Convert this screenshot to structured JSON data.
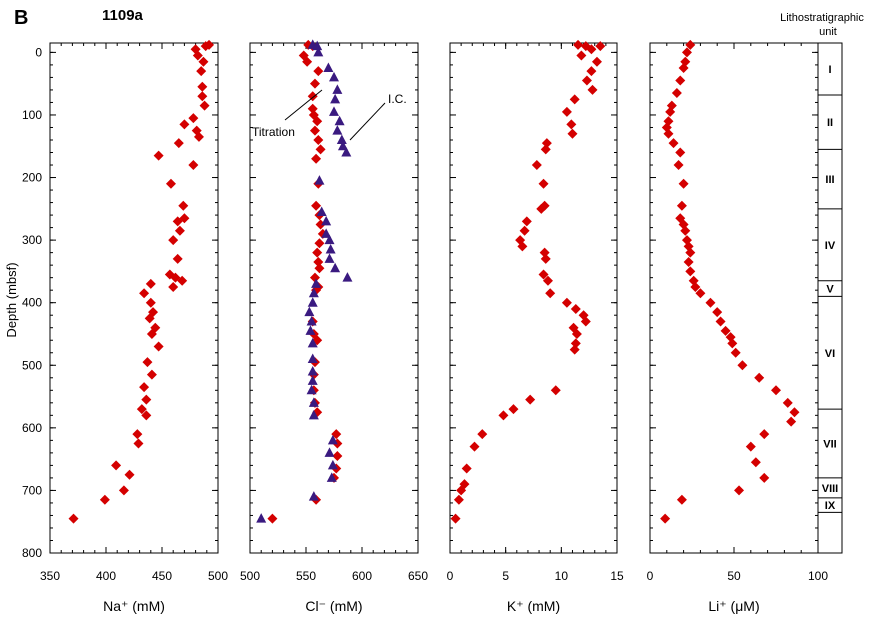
{
  "figure": {
    "panel_letter": "B",
    "hole_label": "1109a",
    "y_axis_label": "Depth (mbsf)",
    "litho_header_line1": "Lithostratigraphic",
    "litho_header_line2": "unit",
    "colors": {
      "marker_red": "#d40000",
      "marker_blue": "#3a1a80",
      "axis": "#000000"
    }
  },
  "chart_data": [
    {
      "type": "scatter",
      "series": [
        {
          "name": "",
          "marker": "diamond",
          "color": "#d40000",
          "points": [
            [
              492,
              -12
            ],
            [
              489,
              -10
            ],
            [
              480,
              -5
            ],
            [
              482,
              5
            ],
            [
              487,
              15
            ],
            [
              485,
              30
            ],
            [
              486,
              55
            ],
            [
              486,
              70
            ],
            [
              488,
              85
            ],
            [
              478,
              105
            ],
            [
              481,
              125
            ],
            [
              483,
              135
            ],
            [
              465,
              145
            ],
            [
              470,
              115
            ],
            [
              447,
              165
            ],
            [
              478,
              180
            ],
            [
              458,
              210
            ],
            [
              469,
              245
            ],
            [
              464,
              270
            ],
            [
              470,
              265
            ],
            [
              466,
              285
            ],
            [
              460,
              300
            ],
            [
              464,
              330
            ],
            [
              457,
              355
            ],
            [
              462,
              360
            ],
            [
              468,
              365
            ],
            [
              460,
              375
            ],
            [
              440,
              370
            ],
            [
              434,
              385
            ],
            [
              440,
              400
            ],
            [
              442,
              415
            ],
            [
              439,
              425
            ],
            [
              444,
              440
            ],
            [
              441,
              450
            ],
            [
              447,
              470
            ],
            [
              437,
              495
            ],
            [
              441,
              515
            ],
            [
              434,
              535
            ],
            [
              436,
              555
            ],
            [
              432,
              570
            ],
            [
              436,
              580
            ],
            [
              428,
              610
            ],
            [
              429,
              625
            ],
            [
              409,
              660
            ],
            [
              421,
              675
            ],
            [
              416,
              700
            ],
            [
              399,
              715
            ],
            [
              371,
              745
            ]
          ]
        }
      ],
      "xlabel": "Na⁺ (mM)",
      "xlim": [
        350,
        500
      ],
      "x_ticks": [
        "350",
        "400",
        "450",
        "500"
      ],
      "ylim": [
        800,
        -15
      ],
      "y_ticks": [
        "0",
        "100",
        "200",
        "300",
        "400",
        "500",
        "600",
        "700",
        "800"
      ]
    },
    {
      "type": "scatter",
      "series": [
        {
          "name": "",
          "marker": "diamond",
          "color": "#d40000",
          "points": [
            [
              552,
              -12
            ],
            [
              556,
              -10
            ],
            [
              548,
              5
            ],
            [
              551,
              15
            ],
            [
              561,
              30
            ],
            [
              558,
              50
            ],
            [
              556,
              70
            ],
            [
              556,
              90
            ],
            [
              557,
              100
            ],
            [
              560,
              110
            ],
            [
              558,
              125
            ],
            [
              561,
              140
            ],
            [
              563,
              155
            ],
            [
              559,
              170
            ],
            [
              561,
              210
            ],
            [
              559,
              245
            ],
            [
              562,
              260
            ],
            [
              563,
              275
            ],
            [
              565,
              290
            ],
            [
              562,
              305
            ],
            [
              560,
              320
            ],
            [
              561,
              335
            ],
            [
              562,
              345
            ],
            [
              558,
              360
            ],
            [
              561,
              375
            ],
            [
              559,
              380
            ],
            [
              556,
              430
            ],
            [
              557,
              450
            ],
            [
              560,
              460
            ],
            [
              558,
              495
            ],
            [
              557,
              515
            ],
            [
              557,
              540
            ],
            [
              558,
              560
            ],
            [
              560,
              575
            ],
            [
              577,
              610
            ],
            [
              578,
              625
            ],
            [
              578,
              645
            ],
            [
              577,
              665
            ],
            [
              575,
              680
            ],
            [
              559,
              715
            ],
            [
              520,
              745
            ]
          ]
        },
        {
          "name": "",
          "marker": "triangle",
          "color": "#3a1a80",
          "points": [
            [
              556,
              -12
            ],
            [
              560,
              -10
            ],
            [
              561,
              0
            ],
            [
              570,
              25
            ],
            [
              575,
              40
            ],
            [
              578,
              60
            ],
            [
              576,
              75
            ],
            [
              575,
              95
            ],
            [
              580,
              110
            ],
            [
              578,
              125
            ],
            [
              582,
              140
            ],
            [
              583,
              150
            ],
            [
              586,
              160
            ],
            [
              562,
              205
            ],
            [
              564,
              255
            ],
            [
              568,
              270
            ],
            [
              568,
              290
            ],
            [
              571,
              300
            ],
            [
              572,
              315
            ],
            [
              571,
              330
            ],
            [
              576,
              345
            ],
            [
              587,
              360
            ],
            [
              559,
              370
            ],
            [
              557,
              385
            ],
            [
              556,
              400
            ],
            [
              553,
              415
            ],
            [
              555,
              430
            ],
            [
              554,
              445
            ],
            [
              556,
              465
            ],
            [
              556,
              490
            ],
            [
              556,
              510
            ],
            [
              556,
              525
            ],
            [
              555,
              540
            ],
            [
              557,
              560
            ],
            [
              557,
              580
            ],
            [
              574,
              620
            ],
            [
              571,
              640
            ],
            [
              574,
              660
            ],
            [
              573,
              680
            ],
            [
              557,
              710
            ],
            [
              510,
              745
            ]
          ]
        }
      ],
      "xlabel": "Cl⁻ (mM)",
      "xlim": [
        500,
        650
      ],
      "x_ticks": [
        "500",
        "550",
        "600",
        "650"
      ],
      "annotations": [
        "Titration",
        "I.C."
      ]
    },
    {
      "type": "scatter",
      "series": [
        {
          "name": "",
          "marker": "diamond",
          "color": "#d40000",
          "points": [
            [
              11.5,
              -12
            ],
            [
              12.2,
              -10
            ],
            [
              12.7,
              -5
            ],
            [
              13.5,
              -10
            ],
            [
              11.8,
              5
            ],
            [
              13.2,
              15
            ],
            [
              12.7,
              30
            ],
            [
              12.3,
              45
            ],
            [
              12.8,
              60
            ],
            [
              11.2,
              75
            ],
            [
              10.5,
              95
            ],
            [
              10.9,
              115
            ],
            [
              11.0,
              130
            ],
            [
              8.7,
              145
            ],
            [
              8.6,
              155
            ],
            [
              7.8,
              180
            ],
            [
              8.4,
              210
            ],
            [
              8.2,
              250
            ],
            [
              8.5,
              245
            ],
            [
              6.9,
              270
            ],
            [
              6.7,
              285
            ],
            [
              6.3,
              300
            ],
            [
              6.5,
              310
            ],
            [
              8.5,
              320
            ],
            [
              8.6,
              330
            ],
            [
              8.4,
              355
            ],
            [
              8.8,
              365
            ],
            [
              9.0,
              385
            ],
            [
              10.5,
              400
            ],
            [
              11.3,
              410
            ],
            [
              12.0,
              420
            ],
            [
              12.2,
              430
            ],
            [
              11.1,
              440
            ],
            [
              11.4,
              450
            ],
            [
              11.3,
              465
            ],
            [
              11.2,
              475
            ],
            [
              9.5,
              540
            ],
            [
              7.2,
              555
            ],
            [
              5.7,
              570
            ],
            [
              4.8,
              580
            ],
            [
              2.9,
              610
            ],
            [
              2.2,
              630
            ],
            [
              1.5,
              665
            ],
            [
              1.3,
              690
            ],
            [
              1.0,
              700
            ],
            [
              0.8,
              715
            ],
            [
              0.5,
              745
            ]
          ]
        }
      ],
      "xlabel": "K⁺ (mM)",
      "xlim": [
        0,
        15
      ],
      "x_ticks": [
        "0",
        "5",
        "10",
        "15"
      ]
    },
    {
      "type": "scatter",
      "series": [
        {
          "name": "",
          "marker": "diamond",
          "color": "#d40000",
          "points": [
            [
              24,
              -12
            ],
            [
              22,
              0
            ],
            [
              21,
              15
            ],
            [
              20,
              25
            ],
            [
              18,
              45
            ],
            [
              16,
              65
            ],
            [
              13,
              85
            ],
            [
              12,
              95
            ],
            [
              11,
              110
            ],
            [
              10,
              120
            ],
            [
              11,
              130
            ],
            [
              14,
              145
            ],
            [
              18,
              160
            ],
            [
              17,
              180
            ],
            [
              20,
              210
            ],
            [
              19,
              245
            ],
            [
              18,
              265
            ],
            [
              20,
              275
            ],
            [
              21,
              285
            ],
            [
              22,
              300
            ],
            [
              23,
              310
            ],
            [
              24,
              320
            ],
            [
              23,
              335
            ],
            [
              24,
              350
            ],
            [
              26,
              365
            ],
            [
              27,
              375
            ],
            [
              30,
              385
            ],
            [
              36,
              400
            ],
            [
              40,
              415
            ],
            [
              42,
              430
            ],
            [
              45,
              445
            ],
            [
              48,
              455
            ],
            [
              49,
              465
            ],
            [
              51,
              480
            ],
            [
              55,
              500
            ],
            [
              65,
              520
            ],
            [
              75,
              540
            ],
            [
              82,
              560
            ],
            [
              86,
              575
            ],
            [
              84,
              590
            ],
            [
              68,
              610
            ],
            [
              60,
              630
            ],
            [
              63,
              655
            ],
            [
              68,
              680
            ],
            [
              53,
              700
            ],
            [
              19,
              715
            ],
            [
              9,
              745
            ]
          ]
        }
      ],
      "xlabel": "Li⁺ (μM)",
      "xlim": [
        0,
        100
      ],
      "x_ticks": [
        "0",
        "50",
        "100"
      ]
    }
  ],
  "lithology": {
    "units": [
      {
        "label": "I",
        "top": -15,
        "bottom": 68
      },
      {
        "label": "II",
        "top": 68,
        "bottom": 155
      },
      {
        "label": "III",
        "top": 155,
        "bottom": 250
      },
      {
        "label": "IV",
        "top": 250,
        "bottom": 365
      },
      {
        "label": "V",
        "top": 365,
        "bottom": 390
      },
      {
        "label": "VI",
        "top": 390,
        "bottom": 570
      },
      {
        "label": "VII",
        "top": 570,
        "bottom": 680
      },
      {
        "label": "VIII",
        "top": 680,
        "bottom": 712
      },
      {
        "label": "IX",
        "top": 712,
        "bottom": 735
      },
      {
        "label": "",
        "top": 735,
        "bottom": 800
      }
    ]
  }
}
